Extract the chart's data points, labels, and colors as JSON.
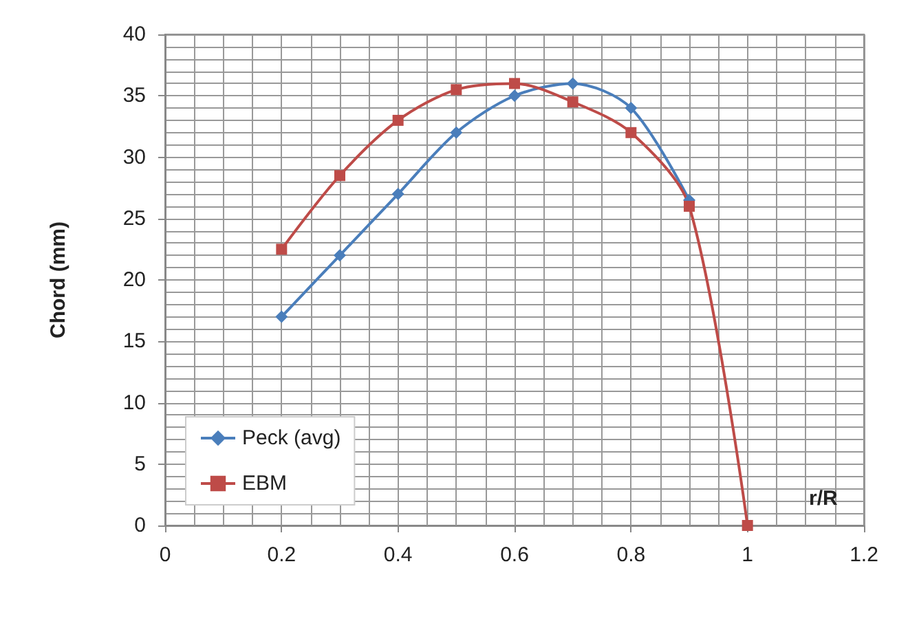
{
  "chart_data": {
    "type": "line",
    "xlabel": "r/R",
    "ylabel": "Chord (mm)",
    "xlim": [
      0,
      1.2
    ],
    "xticks": [
      0,
      0.2,
      0.4,
      0.6,
      0.8,
      1,
      1.2
    ],
    "ylim": [
      0,
      40
    ],
    "yticks": [
      0,
      5,
      10,
      15,
      20,
      25,
      30,
      35,
      40
    ],
    "grid": true,
    "legend": "bottom left",
    "series": [
      {
        "name": "Peck (avg)",
        "color": "#4a7ebb",
        "marker": "diamond",
        "x": [
          0.2,
          0.3,
          0.4,
          0.5,
          0.6,
          0.7,
          0.8,
          0.9
        ],
        "values": [
          17,
          22,
          27,
          32,
          35,
          36,
          34,
          26.5
        ]
      },
      {
        "name": "EBM",
        "color": "#be4b48",
        "marker": "square",
        "x": [
          0.2,
          0.3,
          0.4,
          0.5,
          0.6,
          0.7,
          0.8,
          0.9,
          1
        ],
        "values": [
          22.5,
          28.5,
          33,
          35.5,
          36,
          34.5,
          32,
          26,
          0
        ]
      }
    ]
  }
}
